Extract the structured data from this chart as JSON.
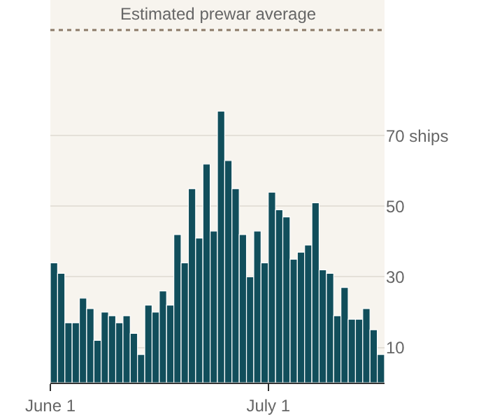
{
  "chart_data": {
    "type": "bar",
    "categories": [
      "June 1",
      null,
      null,
      null,
      null,
      null,
      null,
      null,
      null,
      null,
      null,
      null,
      null,
      null,
      null,
      null,
      null,
      null,
      null,
      null,
      null,
      null,
      null,
      null,
      null,
      null,
      null,
      null,
      null,
      null,
      "July 1",
      null,
      null,
      null,
      null,
      null,
      null,
      null,
      null,
      null,
      null,
      null,
      null,
      null,
      null,
      null
    ],
    "values": [
      34,
      31,
      17,
      17,
      24,
      21,
      12,
      20,
      19,
      17,
      19,
      14,
      8,
      22,
      20,
      26,
      22,
      42,
      34,
      55,
      41,
      62,
      43,
      77,
      63,
      55,
      42,
      30,
      43,
      34,
      54,
      49,
      47,
      35,
      37,
      39,
      51,
      32,
      31,
      19,
      27,
      18,
      18,
      21,
      15,
      8
    ],
    "color": "#114e5b",
    "ylim": [
      0,
      108.5
    ],
    "yticks": [
      10,
      30,
      50,
      {
        "value": 70,
        "label": "70 ships"
      }
    ],
    "grid": "y",
    "ref_lines": [
      {
        "axis": "y",
        "value": 100,
        "label": "Estimated prewar average",
        "color": "#8c7b68",
        "line_style": "dotted"
      }
    ]
  }
}
